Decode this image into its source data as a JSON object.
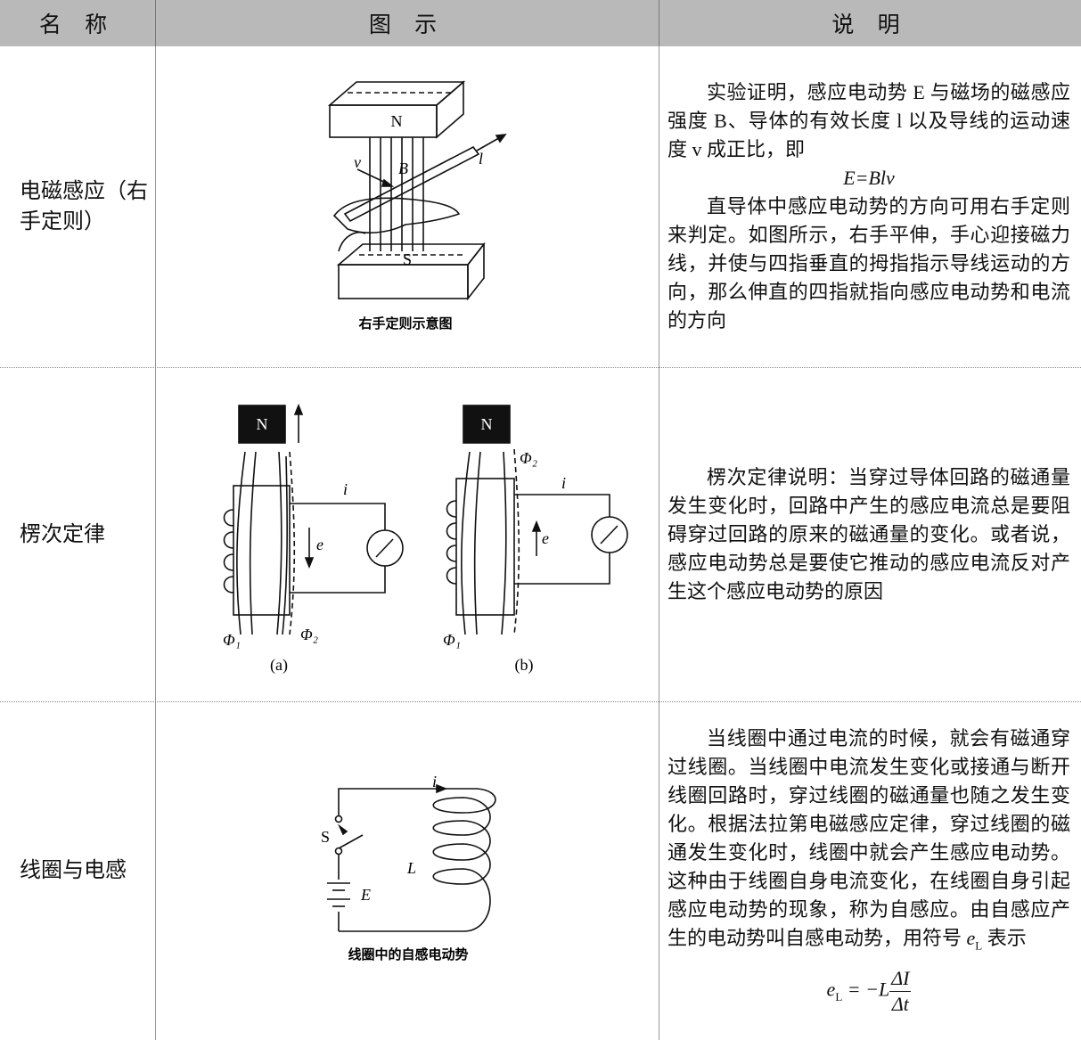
{
  "table": {
    "header": [
      "名 称",
      "图 示",
      "说 明"
    ],
    "rows": [
      {
        "name": "电磁感应（右手定则）",
        "figure": {
          "caption": "右手定则示意图",
          "labels": [
            "N",
            "S",
            "v",
            "B",
            "l"
          ]
        },
        "description": [
          "实验证明，感应电动势 E 与磁场的磁感应强度 B、导体的有效长度 l 以及导线的运动速度 v 成正比，即",
          "E=Blv",
          "直导体中感应电动势的方向可用右手定则来判定。如图所示，右手平伸，手心迎接磁力线，并使与四指垂直的拇指指示导线运动的方向，那么伸直的四指就指向感应电动势和电流的方向"
        ]
      },
      {
        "name": "楞次定律",
        "figure": {
          "labels": [
            "N",
            "i",
            "e",
            "Φ₁",
            "Φ₂",
            "(a)",
            "N",
            "Φ₂",
            "i",
            "e",
            "Φ₁",
            "(b)"
          ]
        },
        "description": [
          "楞次定律说明：当穿过导体回路的磁通量发生变化时，回路中产生的感应电流总是要阻碍穿过回路的原来的磁通量的变化。或者说，感应电动势总是要使它推动的感应电流反对产生这个感应电动势的原因"
        ]
      },
      {
        "name": "线圈与电感",
        "figure": {
          "caption": "线圈中的自感电动势",
          "labels": [
            "i",
            "S",
            "L",
            "E"
          ]
        },
        "description": [
          {
            "text": "当线圈中通过电流的时候，就会有磁通穿过线圈。当线圈中电流发生变化或接通与断开线圈回路时，穿过线圈的磁通量也随之发生变化。根据法拉第电磁感应定律，穿过线圈的磁通发生变化时，线圈中就会产生感应电动势。这种由于线圈自身电流变化，在线圈自身引起感应电动势的现象，称为自感应。由自感应产生的电动势叫自感电动势，用符号",
            "symbol": "e",
            "sub": "L",
            "after": "表示"
          },
          {
            "lhs": "e",
            "lhs_sub": "L",
            "rhs": "= −L",
            "num": "ΔI",
            "den": "Δt"
          }
        ]
      }
    ]
  }
}
